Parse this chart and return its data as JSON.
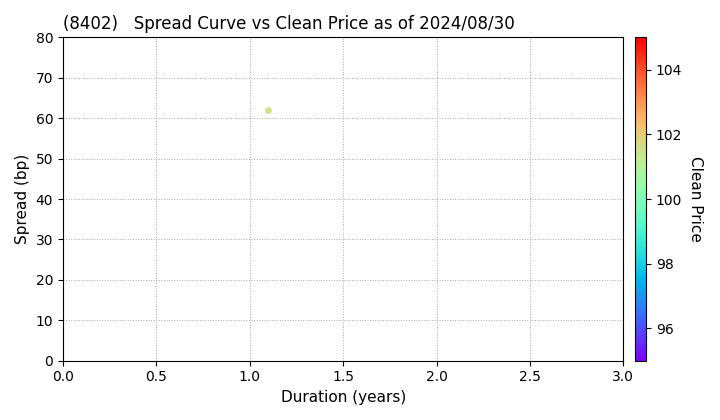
{
  "title": "(8402)   Spread Curve vs Clean Price as of 2024/08/30",
  "xlabel": "Duration (years)",
  "ylabel": "Spread (bp)",
  "colorbar_label": "Clean Price",
  "xlim": [
    0.0,
    3.0
  ],
  "ylim": [
    0,
    80
  ],
  "xticks": [
    0.0,
    0.5,
    1.0,
    1.5,
    2.0,
    2.5,
    3.0
  ],
  "yticks": [
    0,
    10,
    20,
    30,
    40,
    50,
    60,
    70,
    80
  ],
  "colorbar_ticks": [
    96,
    98,
    100,
    102,
    104
  ],
  "colorbar_vmin": 95,
  "colorbar_vmax": 105,
  "scatter_x": [
    1.1
  ],
  "scatter_y": [
    62
  ],
  "scatter_price": [
    101.5
  ],
  "background_color": "#ffffff",
  "grid_color": "#aaaaaa",
  "title_fontsize": 12,
  "axis_fontsize": 11,
  "tick_fontsize": 10
}
